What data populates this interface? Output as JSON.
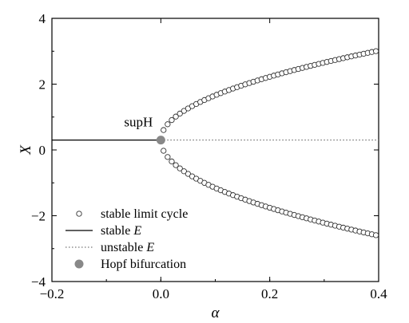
{
  "chart_data": {
    "type": "scatter",
    "xlabel": "α",
    "ylabel": "X",
    "xlim": [
      -0.2,
      0.4
    ],
    "ylim": [
      -4,
      4
    ],
    "x_ticks": [
      "−0.2",
      "0.0",
      "0.2",
      "0.4"
    ],
    "y_ticks": [
      "−4",
      "−2",
      "0",
      "2",
      "4"
    ],
    "x_tick_values": [
      -0.2,
      0.0,
      0.2,
      0.4
    ],
    "y_tick_values": [
      -4,
      -2,
      0,
      2,
      4
    ],
    "grid": false,
    "legend_position": "bottom-left",
    "equilibrium_value": 0.3,
    "series": [
      {
        "name": "stable limit cycle",
        "style": "open-circle",
        "x_start": 0.005,
        "x_end": 0.4,
        "x_step": 0.0075,
        "upper_formula": "0.3 + 4.3*sqrt(x)",
        "lower_formula": "0.3 - 4.6*sqrt(x)"
      },
      {
        "name": "stable E",
        "style": "solid-line",
        "x": [
          -0.2,
          0.0
        ],
        "y": [
          0.3,
          0.3
        ]
      },
      {
        "name": "unstable E",
        "style": "dotted-line",
        "x": [
          0.0,
          0.4
        ],
        "y": [
          0.3,
          0.3
        ]
      },
      {
        "name": "Hopf bifurcation",
        "style": "filled-circle",
        "x": [
          0.0
        ],
        "y": [
          0.3
        ]
      }
    ],
    "annotations": [
      {
        "text": "supH",
        "x": 0.0,
        "y": 0.3
      }
    ],
    "legend": [
      {
        "label_main": "stable limit cycle",
        "label_var": "",
        "style": "open-circle"
      },
      {
        "label_main": "stable ",
        "label_var": "E",
        "style": "solid-line"
      },
      {
        "label_main": "unstable ",
        "label_var": "E",
        "style": "dotted-line"
      },
      {
        "label_main": "Hopf bifurcation",
        "label_var": "",
        "style": "filled-circle"
      }
    ],
    "colors": {
      "hopf": "#888888",
      "line": "#000000",
      "dotted": "#555555",
      "circle_stroke": "#333333"
    }
  }
}
